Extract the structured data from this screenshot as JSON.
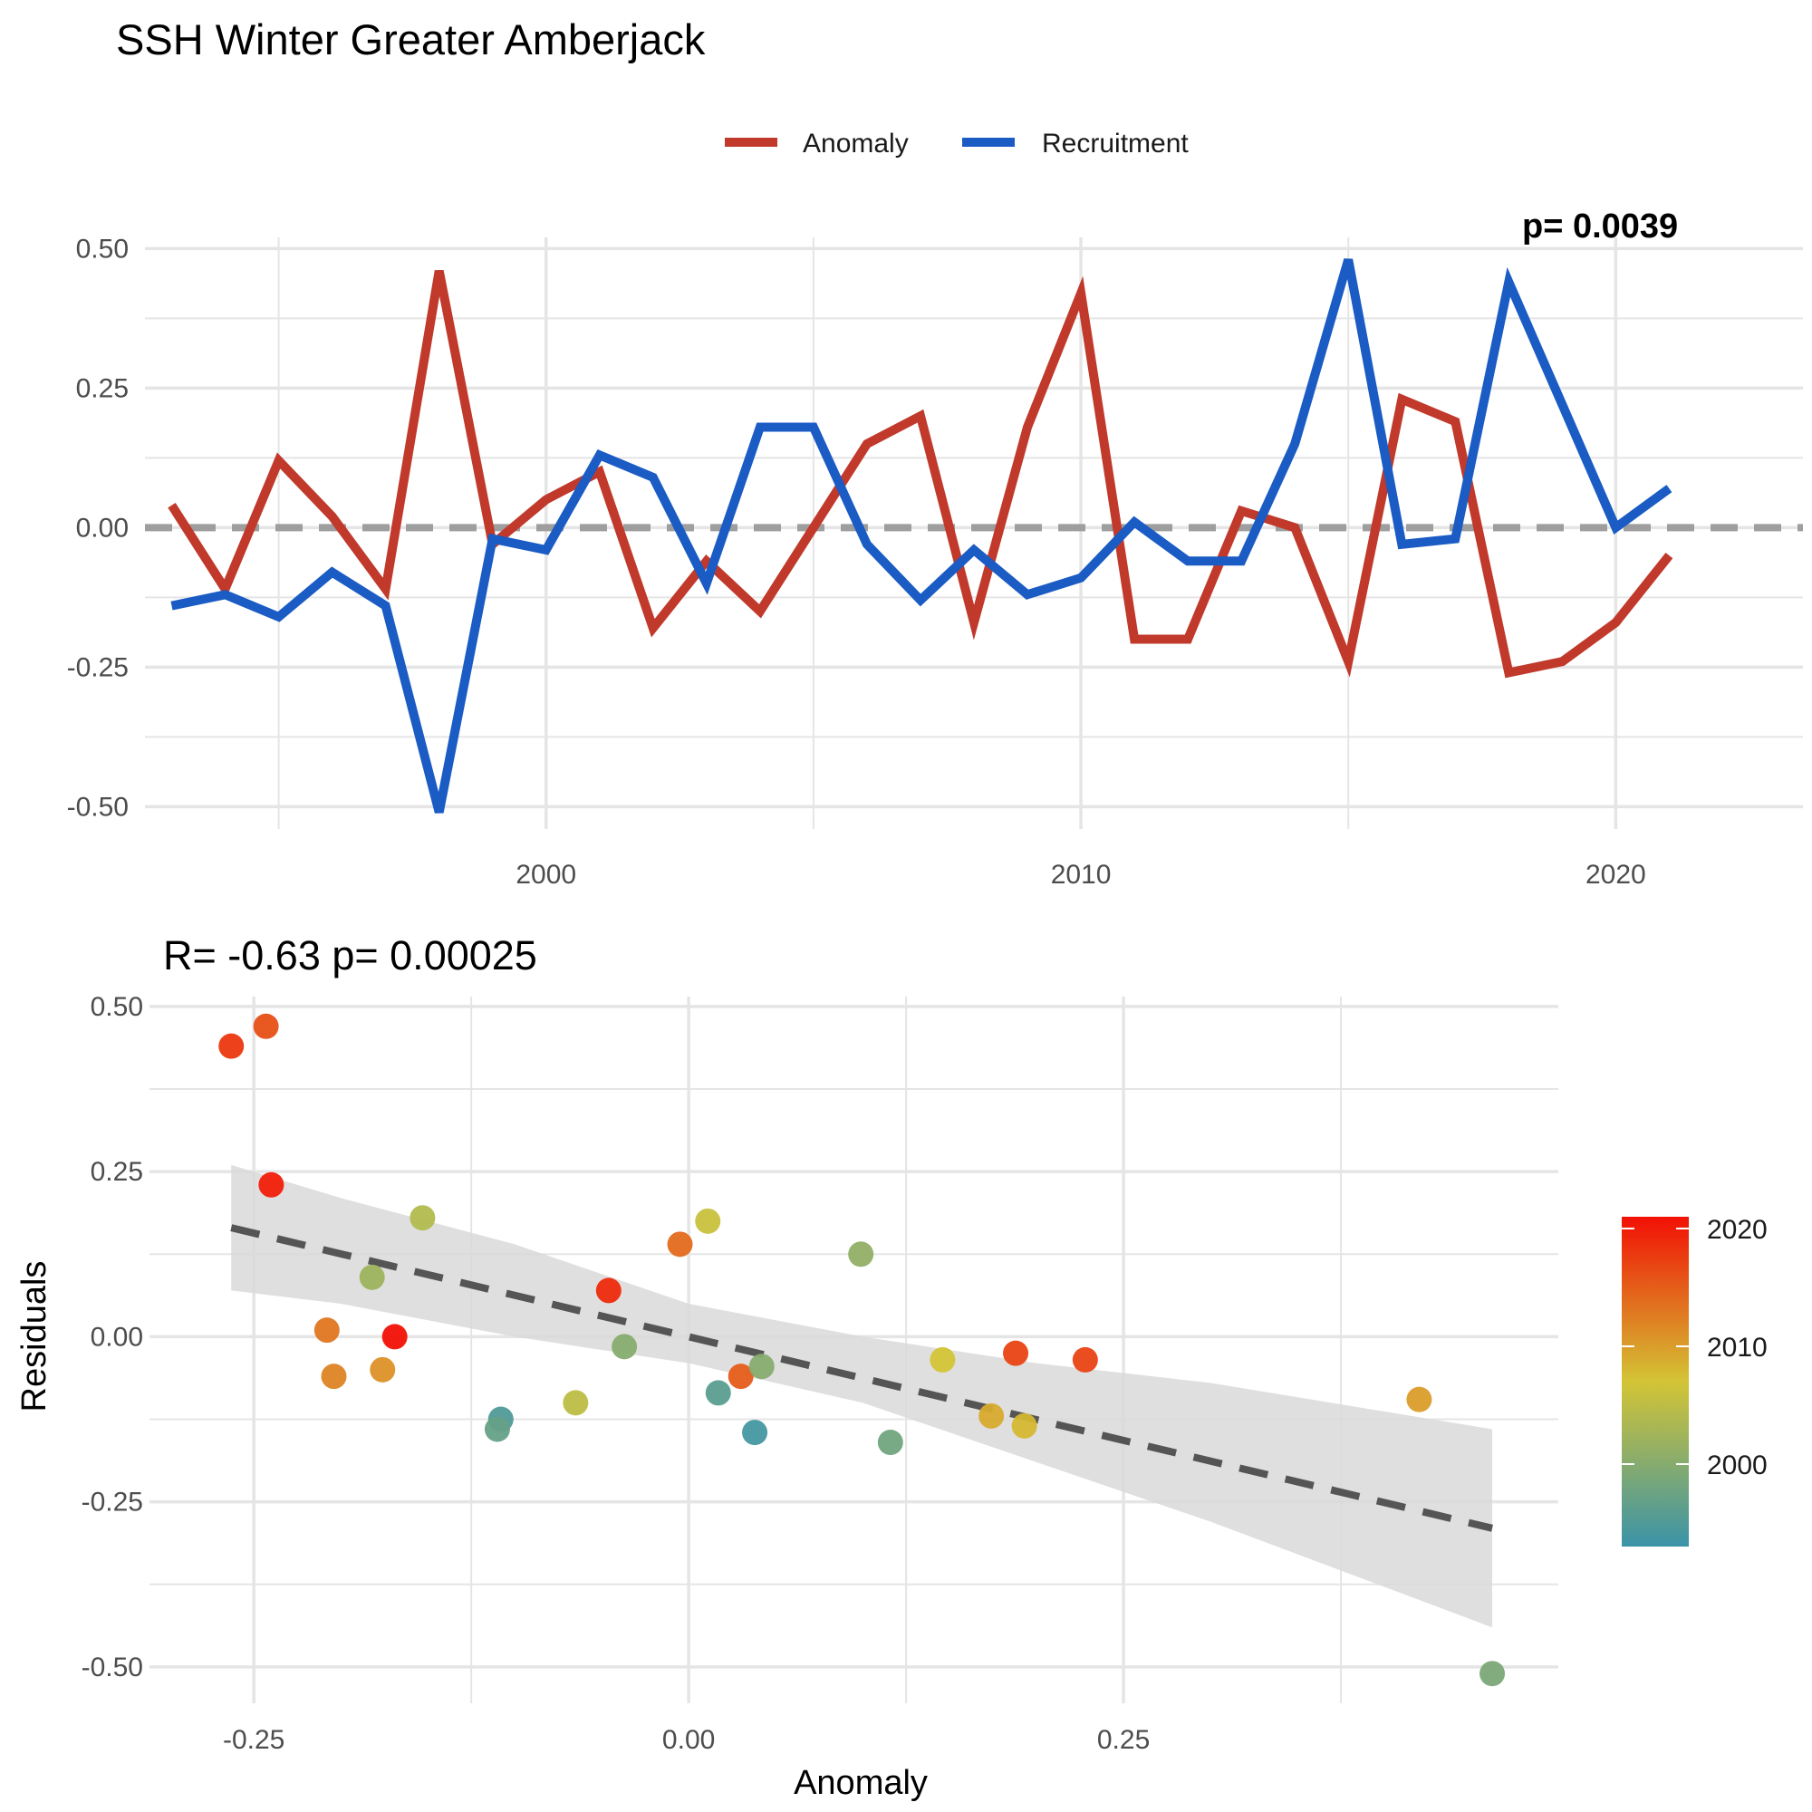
{
  "title": "SSH Winter Greater Amberjack",
  "top_corner_text": "p= 0.0039",
  "colors": {
    "anomaly": "#C0392B",
    "recruitment": "#1A5BC4",
    "zero_line": "#9E9E9E",
    "fit_line": "#555555",
    "ribbon": "#D9D9D9",
    "grid": "#E5E5E5"
  },
  "chart_data": [
    {
      "type": "line",
      "xlabel": "",
      "ylabel": "",
      "xlim": [
        1992.5,
        2023.5
      ],
      "ylim": [
        -0.54,
        0.52
      ],
      "x_ticks": [
        2000,
        2010,
        2020
      ],
      "y_ticks": [
        -0.5,
        -0.25,
        0.0,
        0.25,
        0.5
      ],
      "y_tick_labels": [
        "-0.50",
        "-0.25",
        "0.00",
        "0.25",
        "0.50"
      ],
      "hline": 0,
      "legend_position": "top",
      "legend": [
        "Anomaly",
        "Recruitment"
      ],
      "x": [
        1993,
        1994,
        1995,
        1996,
        1997,
        1998,
        1999,
        2000,
        2001,
        2002,
        2003,
        2004,
        2005,
        2006,
        2007,
        2008,
        2009,
        2010,
        2011,
        2012,
        2013,
        2014,
        2015,
        2016,
        2017,
        2018,
        2019,
        2020,
        2021
      ],
      "series": [
        {
          "name": "Anomaly",
          "color": "#C0392B",
          "values": [
            0.04,
            -0.11,
            0.12,
            0.02,
            -0.11,
            0.46,
            -0.03,
            0.05,
            0.1,
            -0.18,
            -0.06,
            -0.15,
            0.0,
            0.15,
            0.2,
            -0.17,
            0.18,
            0.42,
            -0.2,
            -0.2,
            0.03,
            0.0,
            -0.24,
            0.23,
            0.19,
            -0.26,
            -0.24,
            -0.17,
            -0.05
          ]
        },
        {
          "name": "Recruitment",
          "color": "#1A5BC4",
          "values": [
            -0.14,
            -0.12,
            -0.16,
            -0.08,
            -0.14,
            -0.51,
            -0.02,
            -0.04,
            0.13,
            0.09,
            -0.1,
            0.18,
            0.18,
            -0.03,
            -0.13,
            -0.04,
            -0.12,
            -0.09,
            0.01,
            -0.06,
            -0.06,
            0.15,
            0.48,
            -0.03,
            -0.02,
            0.44,
            0.22,
            0.0,
            0.07
          ]
        }
      ]
    },
    {
      "type": "scatter",
      "subtitle": "R= -0.63  p= 0.00025",
      "xlabel": "Anomaly",
      "ylabel": "Residuals",
      "xlim": [
        -0.31,
        0.5
      ],
      "ylim": [
        -0.555,
        0.515
      ],
      "x_ticks": [
        -0.25,
        0.0,
        0.25
      ],
      "x_tick_labels": [
        "-0.25",
        "0.00",
        "0.25"
      ],
      "y_ticks": [
        -0.5,
        -0.25,
        0.0,
        0.25,
        0.5
      ],
      "y_tick_labels": [
        "-0.50",
        "-0.25",
        "0.00",
        "0.25",
        "0.50"
      ],
      "fit": {
        "x0": -0.263,
        "y0": 0.165,
        "x1": 0.462,
        "y1": -0.29
      },
      "ci_band": {
        "x": [
          -0.263,
          -0.2,
          -0.1,
          0.0,
          0.1,
          0.2,
          0.3,
          0.462
        ],
        "lower": [
          0.07,
          0.05,
          0.0,
          -0.04,
          -0.1,
          -0.19,
          -0.28,
          -0.44
        ],
        "upper": [
          0.26,
          0.21,
          0.14,
          0.05,
          0.0,
          -0.04,
          -0.07,
          -0.14
        ]
      },
      "colorbar": {
        "label_ticks": [
          2000,
          2010,
          2020
        ],
        "range": [
          1993,
          2021
        ],
        "colors": [
          "#3A93A8",
          "#D3C435",
          "#F21005"
        ]
      },
      "points": [
        {
          "x": -0.263,
          "y": 0.44,
          "year": 2018
        },
        {
          "x": -0.243,
          "y": 0.47,
          "year": 2016
        },
        {
          "x": -0.24,
          "y": 0.23,
          "year": 2020
        },
        {
          "x": -0.153,
          "y": 0.18,
          "year": 2004
        },
        {
          "x": -0.182,
          "y": 0.09,
          "year": 2002
        },
        {
          "x": -0.208,
          "y": 0.01,
          "year": 2013
        },
        {
          "x": -0.169,
          "y": 0.0,
          "year": 2021
        },
        {
          "x": -0.204,
          "y": -0.06,
          "year": 2012
        },
        {
          "x": -0.176,
          "y": -0.05,
          "year": 2011
        },
        {
          "x": -0.108,
          "y": -0.125,
          "year": 1995
        },
        {
          "x": -0.11,
          "y": -0.14,
          "year": 1997
        },
        {
          "x": -0.065,
          "y": -0.1,
          "year": 2005
        },
        {
          "x": -0.037,
          "y": -0.015,
          "year": 2000
        },
        {
          "x": -0.046,
          "y": 0.07,
          "year": 2019
        },
        {
          "x": -0.005,
          "y": 0.14,
          "year": 2014
        },
        {
          "x": 0.011,
          "y": 0.175,
          "year": 2006
        },
        {
          "x": 0.03,
          "y": -0.06,
          "year": 2015
        },
        {
          "x": 0.042,
          "y": -0.045,
          "year": 2000
        },
        {
          "x": 0.017,
          "y": -0.085,
          "year": 1996
        },
        {
          "x": 0.038,
          "y": -0.145,
          "year": 1994
        },
        {
          "x": 0.099,
          "y": 0.125,
          "year": 2001
        },
        {
          "x": 0.116,
          "y": -0.16,
          "year": 1998
        },
        {
          "x": 0.146,
          "y": -0.035,
          "year": 2007
        },
        {
          "x": 0.174,
          "y": -0.12,
          "year": 2009
        },
        {
          "x": 0.193,
          "y": -0.135,
          "year": 2008
        },
        {
          "x": 0.188,
          "y": -0.025,
          "year": 2017
        },
        {
          "x": 0.228,
          "y": -0.035,
          "year": 2017
        },
        {
          "x": 0.42,
          "y": -0.095,
          "year": 2010
        },
        {
          "x": 0.462,
          "y": -0.51,
          "year": 1999
        }
      ]
    }
  ]
}
